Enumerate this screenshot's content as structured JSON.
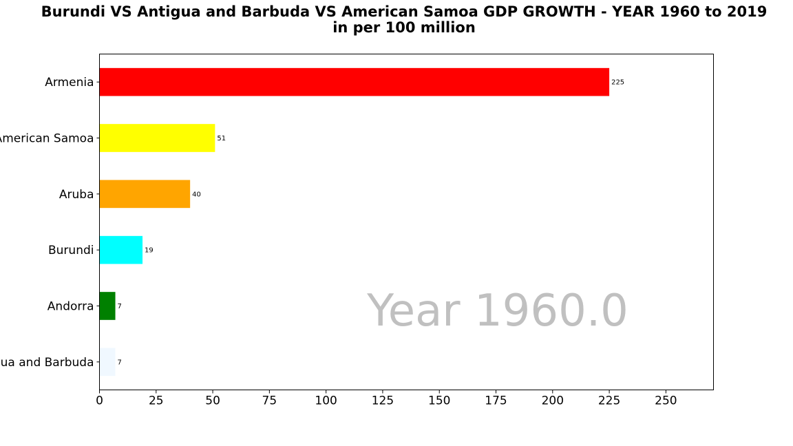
{
  "chart_data": {
    "type": "bar",
    "orientation": "horizontal",
    "title": "Burundi VS Antigua and Barbuda VS American Samoa GDP GROWTH - YEAR 1960 to 2019",
    "subtitle": "in per 100 million",
    "xlabel": "",
    "ylabel": "",
    "xlim": [
      0,
      271
    ],
    "xticks": [
      0,
      25,
      50,
      75,
      100,
      125,
      150,
      175,
      200,
      225,
      250
    ],
    "grid": false,
    "annotation": "Year 1960.0",
    "categories": [
      "Armenia",
      "American Samoa",
      "Aruba",
      "Burundi",
      "Andorra",
      "Antigua and Barbuda"
    ],
    "values": [
      225,
      51,
      40,
      19,
      7,
      7
    ],
    "value_labels": [
      "225",
      "51",
      "40",
      "19",
      "7",
      "7"
    ],
    "colors": [
      "#ff0000",
      "#ffff00",
      "#ffa500",
      "#00ffff",
      "#008000",
      "#f0f8ff"
    ]
  }
}
